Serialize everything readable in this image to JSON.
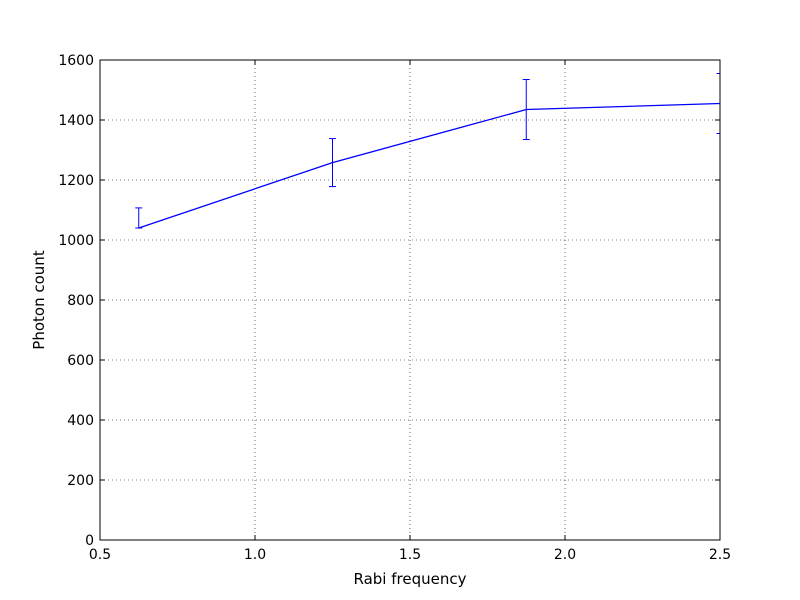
{
  "chart_data": {
    "type": "line",
    "xlabel": "Rabi frequency",
    "ylabel": "Photon count",
    "xlim": [
      0.5,
      2.5
    ],
    "ylim": [
      0,
      1600
    ],
    "xticks": [
      "0.5",
      "1.0",
      "1.5",
      "2.0",
      "2.5"
    ],
    "yticks": [
      "0",
      "200",
      "400",
      "600",
      "800",
      "1000",
      "1200",
      "1400",
      "1600"
    ],
    "grid": true,
    "series": [
      {
        "x": [
          0.625,
          1.25,
          1.875,
          2.5
        ],
        "y": [
          1040,
          1258,
          1435,
          1455
        ],
        "err_low": [
          1040,
          1178,
          1335,
          1355
        ],
        "err_high": [
          1107,
          1338,
          1535,
          1555
        ],
        "color": "#0000ff"
      }
    ]
  }
}
